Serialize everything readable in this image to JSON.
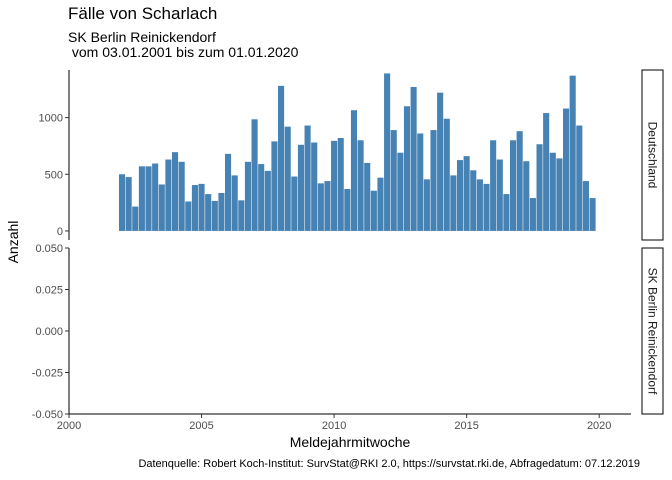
{
  "chart_data": {
    "type": "bar",
    "title": "Fälle von Scharlach",
    "subtitle_line1": "SK Berlin Reinickendorf",
    "subtitle_line2": " vom 03.01.2001 bis zum 01.01.2020",
    "xlabel": "Meldejahrmitwoche",
    "ylabel": "Anzahl",
    "caption": "Datenquelle: Robert Koch-Institut: SurvStat@RKI 2.0, https://survstat.rki.de, Abfragedatum: 07.12.2019",
    "xlim": [
      2000,
      2021.2
    ],
    "xticks": [
      "2000",
      "2005",
      "2010",
      "2015",
      "2020"
    ],
    "bar_color": "#4682B4",
    "legend": "none",
    "grid": false,
    "panels": [
      {
        "strip": "Deutschland",
        "ylim": [
          -80,
          1420
        ],
        "yticks": [
          "0",
          "500",
          "1000"
        ],
        "bar_width_years": 0.23,
        "x": [
          2002.0,
          2002.25,
          2002.5,
          2002.75,
          2003.0,
          2003.25,
          2003.5,
          2003.75,
          2004.0,
          2004.25,
          2004.5,
          2004.75,
          2005.0,
          2005.25,
          2005.5,
          2005.75,
          2006.0,
          2006.25,
          2006.5,
          2006.75,
          2007.0,
          2007.25,
          2007.5,
          2007.75,
          2008.0,
          2008.25,
          2008.5,
          2008.75,
          2009.0,
          2009.25,
          2009.5,
          2009.75,
          2010.0,
          2010.25,
          2010.5,
          2010.75,
          2011.0,
          2011.25,
          2011.5,
          2011.75,
          2012.0,
          2012.25,
          2012.5,
          2012.75,
          2013.0,
          2013.25,
          2013.5,
          2013.75,
          2014.0,
          2014.25,
          2014.5,
          2014.75,
          2015.0,
          2015.25,
          2015.5,
          2015.75,
          2016.0,
          2016.25,
          2016.5,
          2016.75,
          2017.0,
          2017.25,
          2017.5,
          2017.75,
          2018.0,
          2018.25,
          2018.5,
          2018.75,
          2019.0,
          2019.25,
          2019.5,
          2019.75
        ],
        "values": [
          500,
          475,
          215,
          570,
          570,
          595,
          410,
          630,
          695,
          610,
          260,
          405,
          415,
          325,
          265,
          335,
          680,
          490,
          270,
          610,
          985,
          590,
          530,
          790,
          1280,
          920,
          480,
          760,
          930,
          780,
          420,
          440,
          795,
          820,
          370,
          1065,
          800,
          600,
          355,
          470,
          1390,
          890,
          690,
          1100,
          1270,
          860,
          455,
          890,
          1220,
          990,
          490,
          625,
          660,
          535,
          455,
          415,
          800,
          630,
          325,
          800,
          880,
          615,
          290,
          765,
          1040,
          690,
          640,
          1080,
          1370,
          930,
          440,
          290
        ]
      },
      {
        "strip": "SK Berlin Reinickendorf",
        "ylim": [
          -0.05,
          0.05
        ],
        "yticks": [
          "-0.050",
          "-0.025",
          "0.000",
          "0.025",
          "0.050"
        ],
        "values": []
      }
    ]
  }
}
